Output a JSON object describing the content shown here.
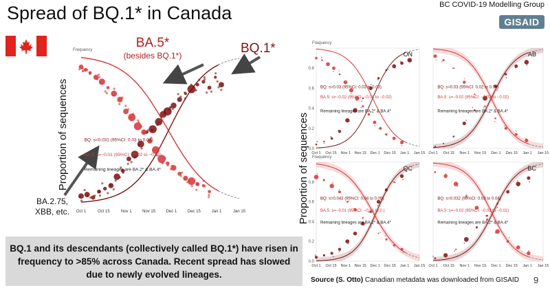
{
  "header": {
    "title": "Spread of BQ.1* in Canada",
    "group": "BC COVID-19 Modelling Group",
    "logo_text": "GISAID"
  },
  "annotations": {
    "ba5_big": "BA.5*",
    "ba5_small": "(besides BQ.1*)",
    "bq1": "BQ.1*",
    "others": [
      "BA.2.75,",
      "XBB, etc."
    ]
  },
  "axis_title": "Proportion of sequences",
  "summary": "BQ.1 and its descendants (collectively called BQ.1*) have risen in frequency to >85% across Canada. Recent spread has slowed due to newly evolved lineages.",
  "source": {
    "label": "Source (S. Otto)",
    "text": " Canadian metadata was downloaded from GISAID"
  },
  "page_number": "9",
  "colors": {
    "bq1": "#7a1010",
    "ba5": "#d43535",
    "summary_bg": "#d9d9d9",
    "flag_red": "#e0231c"
  },
  "chart_data": [
    {
      "id": "canada",
      "type": "scatter",
      "title": "",
      "ylabel": "Frequency",
      "x_ticks": [
        "Oct 1",
        "Oct 15",
        "Nov 1",
        "Nov 15",
        "Dec 1",
        "Dec 15",
        "Jan 1",
        "Jan 15"
      ],
      "xlim": [
        0,
        106
      ],
      "ylim": [
        0,
        1
      ],
      "y_ticks": [],
      "stats": [
        "BQ: s=0.031 (95%CI: 0.03 to 0.03)",
        "BA.5: s=−0.01 (95%CI: −0.02 to −0.01)",
        "Remaining lineages are BA.2* & BA.4*"
      ],
      "series": [
        {
          "name": "BQ.1*",
          "s": 0.08,
          "mid": 59,
          "ci": false,
          "points": [
            [
              0,
              0.05
            ],
            [
              4,
              0.06
            ],
            [
              8,
              0.04
            ],
            [
              12,
              0.08
            ],
            [
              16,
              0.1
            ],
            [
              20,
              0.12
            ],
            [
              24,
              0.18
            ],
            [
              28,
              0.22
            ],
            [
              32,
              0.3
            ],
            [
              36,
              0.33
            ],
            [
              40,
              0.4
            ],
            [
              44,
              0.48
            ],
            [
              48,
              0.5
            ],
            [
              52,
              0.55
            ],
            [
              55,
              0.6
            ],
            [
              58,
              0.62
            ],
            [
              62,
              0.66
            ],
            [
              66,
              0.7
            ],
            [
              70,
              0.74
            ],
            [
              74,
              0.77
            ],
            [
              78,
              0.8
            ],
            [
              82,
              0.82
            ],
            [
              86,
              0.78
            ],
            [
              90,
              0.85
            ],
            [
              94,
              0.8
            ]
          ]
        },
        {
          "name": "BA.5*",
          "s": -0.07,
          "mid": 58,
          "ci": false,
          "points": [
            [
              0,
              0.92
            ],
            [
              3,
              0.9
            ],
            [
              6,
              0.88
            ],
            [
              10,
              0.85
            ],
            [
              14,
              0.82
            ],
            [
              18,
              0.78
            ],
            [
              22,
              0.74
            ],
            [
              26,
              0.7
            ],
            [
              30,
              0.62
            ],
            [
              34,
              0.58
            ],
            [
              38,
              0.52
            ],
            [
              42,
              0.48
            ],
            [
              46,
              0.42
            ],
            [
              50,
              0.36
            ],
            [
              54,
              0.3
            ],
            [
              58,
              0.27
            ],
            [
              62,
              0.24
            ],
            [
              66,
              0.2
            ],
            [
              70,
              0.17
            ],
            [
              74,
              0.15
            ],
            [
              78,
              0.13
            ],
            [
              82,
              0.12
            ],
            [
              86,
              0.08
            ]
          ]
        }
      ]
    },
    {
      "id": "ON",
      "type": "scatter",
      "title": "ON",
      "ylabel": "Frequency",
      "x_ticks": [
        "Oct 1",
        "Oct 15",
        "Nov 1",
        "Nov 15",
        "Dec 1",
        "Dec 15",
        "Jan 1",
        "Jan 15"
      ],
      "xlim": [
        0,
        106
      ],
      "ylim": [
        0,
        1
      ],
      "y_ticks": [
        "0.0",
        "0.2",
        "0.4",
        "0.6",
        "0.8"
      ],
      "stats": [
        "BQ: s=0.03 (95%CI: 0.03 to 0.03)",
        "BA.5: s=−0.02 (95%CI: −0.02 to −0.02)",
        "Remaining lineages are BA.2* & BA.4*"
      ],
      "series": [
        {
          "name": "BQ.1*",
          "s": 0.09,
          "mid": 58,
          "ci": false,
          "points": [
            [
              0,
              0.04
            ],
            [
              8,
              0.07
            ],
            [
              16,
              0.1
            ],
            [
              24,
              0.17
            ],
            [
              32,
              0.28
            ],
            [
              40,
              0.38
            ],
            [
              48,
              0.5
            ],
            [
              56,
              0.6
            ],
            [
              64,
              0.7
            ],
            [
              72,
              0.78
            ],
            [
              80,
              0.82
            ],
            [
              88,
              0.85
            ],
            [
              96,
              0.88
            ]
          ]
        },
        {
          "name": "BA.5*",
          "s": -0.08,
          "mid": 58,
          "ci": false,
          "points": [
            [
              0,
              0.9
            ],
            [
              6,
              0.88
            ],
            [
              12,
              0.84
            ],
            [
              18,
              0.8
            ],
            [
              24,
              0.74
            ],
            [
              30,
              0.66
            ],
            [
              36,
              0.58
            ],
            [
              42,
              0.5
            ],
            [
              48,
              0.42
            ],
            [
              54,
              0.34
            ],
            [
              60,
              0.26
            ],
            [
              66,
              0.2
            ],
            [
              72,
              0.14
            ],
            [
              80,
              0.1
            ],
            [
              88,
              0.06
            ]
          ]
        }
      ]
    },
    {
      "id": "AB",
      "type": "scatter",
      "title": "AB",
      "ylabel": "",
      "x_ticks": [
        "Oct 1",
        "Oct 15",
        "Nov 1",
        "Nov 15",
        "Dec 1",
        "Dec 15",
        "Jan 1",
        "Jan 15"
      ],
      "xlim": [
        0,
        106
      ],
      "ylim": [
        0,
        1
      ],
      "y_ticks": [],
      "stats": [
        "BQ: s=0.03 (95%CI: 0.02 to 0.04)",
        "BA.5: s=−0.02 (95%CI: −0.02 to −0.02)",
        "Remaining lineages are BA.2* & BA.4*"
      ],
      "series": [
        {
          "name": "BQ.1*",
          "s": 0.085,
          "mid": 56,
          "ci": true,
          "points": [
            [
              2,
              0.02
            ],
            [
              10,
              0.05
            ],
            [
              20,
              0.12
            ],
            [
              30,
              0.25
            ],
            [
              40,
              0.38
            ],
            [
              50,
              0.5
            ],
            [
              60,
              0.62
            ],
            [
              70,
              0.74
            ],
            [
              80,
              0.82
            ],
            [
              90,
              0.86
            ]
          ]
        },
        {
          "name": "BA.5*",
          "s": -0.085,
          "mid": 56,
          "ci": true,
          "points": [
            [
              2,
              0.92
            ],
            [
              10,
              0.88
            ],
            [
              20,
              0.8
            ],
            [
              30,
              0.66
            ],
            [
              40,
              0.54
            ],
            [
              50,
              0.42
            ],
            [
              60,
              0.3
            ],
            [
              70,
              0.2
            ],
            [
              80,
              0.14
            ],
            [
              90,
              0.08
            ]
          ]
        }
      ]
    },
    {
      "id": "QC",
      "type": "scatter",
      "title": "QC",
      "ylabel": "Frequency",
      "x_ticks": [
        "Oct 1",
        "Oct 15",
        "Nov 1",
        "Nov 15",
        "Dec 1",
        "Dec 15",
        "Jan 1",
        "Jan 15"
      ],
      "xlim": [
        0,
        106
      ],
      "ylim": [
        0,
        1
      ],
      "y_ticks": [
        "0.0",
        "0.2",
        "0.4",
        "0.6",
        "0.8"
      ],
      "stats": [
        "BQ: s=0.043 (95%CI: 0.04 to 0.05)",
        "BA.5: s=−0.01 (95%CI: −0.01 to 0.)",
        "Remaining lineages are BA.2* & BA.4*"
      ],
      "series": [
        {
          "name": "BQ.1*",
          "s": 0.09,
          "mid": 62,
          "ci": true,
          "points": [
            [
              0,
              0.04
            ],
            [
              8,
              0.06
            ],
            [
              16,
              0.08
            ],
            [
              24,
              0.12
            ],
            [
              32,
              0.2
            ],
            [
              40,
              0.28
            ],
            [
              48,
              0.38
            ],
            [
              56,
              0.5
            ],
            [
              64,
              0.6
            ],
            [
              72,
              0.72
            ],
            [
              80,
              0.8
            ],
            [
              88,
              0.86
            ]
          ]
        },
        {
          "name": "BA.5*",
          "s": -0.07,
          "mid": 58,
          "ci": true,
          "points": [
            [
              0,
              0.85
            ],
            [
              8,
              0.82
            ],
            [
              16,
              0.76
            ],
            [
              24,
              0.7
            ],
            [
              32,
              0.6
            ],
            [
              40,
              0.52
            ],
            [
              48,
              0.44
            ],
            [
              56,
              0.36
            ],
            [
              64,
              0.28
            ],
            [
              72,
              0.22
            ],
            [
              80,
              0.16
            ],
            [
              88,
              0.12
            ]
          ]
        }
      ]
    },
    {
      "id": "BC",
      "type": "scatter",
      "title": "BC",
      "ylabel": "",
      "x_ticks": [
        "Oct 1",
        "Oct 15",
        "Nov 1",
        "Nov 15",
        "Dec 1",
        "Dec 15",
        "Jan 1",
        "Jan 15"
      ],
      "xlim": [
        0,
        106
      ],
      "ylim": [
        0,
        1
      ],
      "y_ticks": [],
      "stats": [
        "BQ: s=0.032 (95%CI: 0.03 to 0.04)",
        "BA.5: s=−0.02 (95%CI: −0.02 to −0.01)",
        "Remaining lineages are BA.2* & BA.4*"
      ],
      "series": [
        {
          "name": "BQ.1*",
          "s": 0.085,
          "mid": 58,
          "ci": true,
          "points": [
            [
              2,
              0.03
            ],
            [
              12,
              0.06
            ],
            [
              22,
              0.12
            ],
            [
              32,
              0.22
            ],
            [
              42,
              0.34
            ],
            [
              52,
              0.46
            ],
            [
              62,
              0.58
            ],
            [
              72,
              0.7
            ],
            [
              82,
              0.78
            ],
            [
              92,
              0.84
            ]
          ]
        },
        {
          "name": "BA.5*",
          "s": -0.085,
          "mid": 56,
          "ci": true,
          "points": [
            [
              2,
              0.9
            ],
            [
              12,
              0.86
            ],
            [
              22,
              0.78
            ],
            [
              32,
              0.66
            ],
            [
              42,
              0.54
            ],
            [
              52,
              0.42
            ],
            [
              62,
              0.3
            ],
            [
              72,
              0.2
            ],
            [
              82,
              0.14
            ],
            [
              92,
              0.08
            ]
          ]
        }
      ]
    }
  ]
}
